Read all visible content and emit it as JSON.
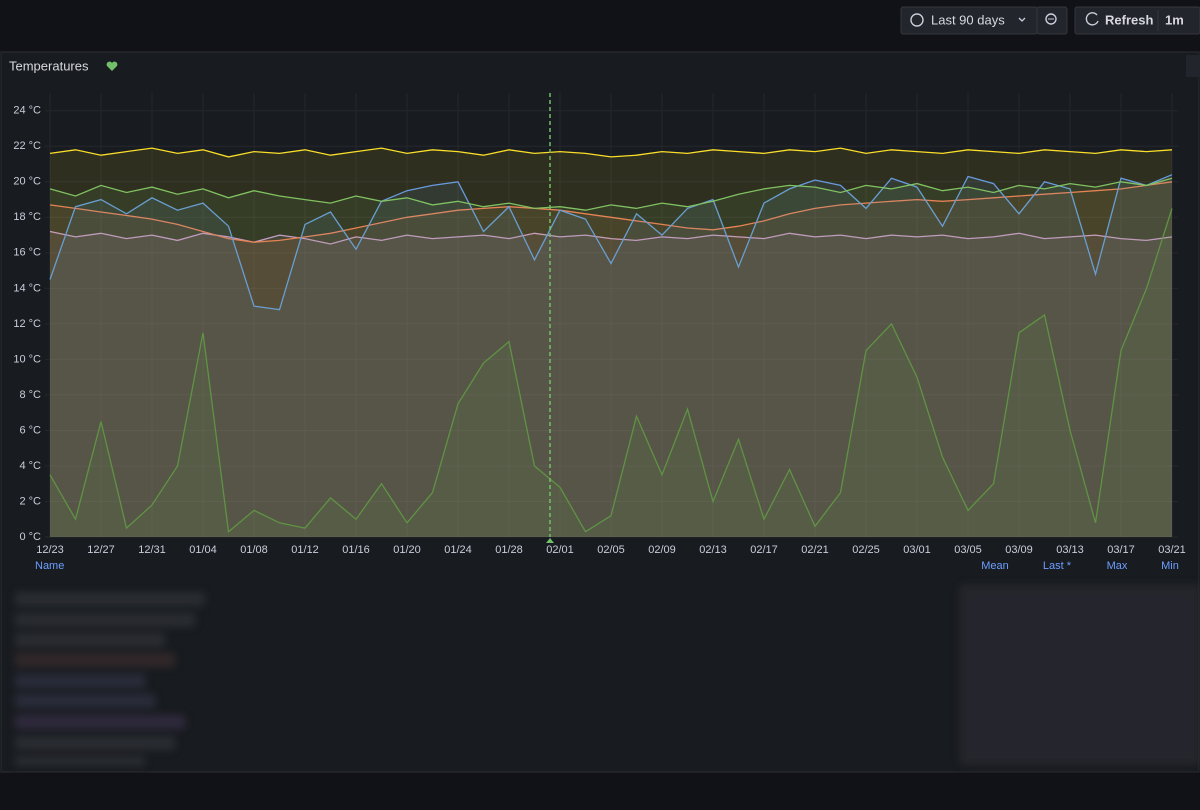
{
  "toolbar": {
    "time_range": "Last 90 days",
    "refresh": "Refresh",
    "interval": "1m"
  },
  "panel": {
    "title": "Temperatures"
  },
  "chart_data": {
    "type": "line",
    "categories": [
      "12/23",
      null,
      "12/27",
      null,
      "12/31",
      null,
      "01/04",
      null,
      "01/08",
      null,
      "01/12",
      null,
      "01/16",
      null,
      "01/20",
      null,
      "01/24",
      null,
      "01/28",
      null,
      "02/01",
      null,
      "02/05",
      null,
      "02/09",
      null,
      "02/13",
      null,
      "02/17",
      null,
      "02/21",
      null,
      "02/25",
      null,
      "03/01",
      null,
      "03/05",
      null,
      "03/09",
      null,
      "03/13",
      null,
      "03/17",
      null,
      "03/21"
    ],
    "ylim": [
      0,
      25
    ],
    "yticks": [
      {
        "value": 0,
        "label": "0 °C"
      },
      {
        "value": 2,
        "label": "2 °C"
      },
      {
        "value": 4,
        "label": "4 °C"
      },
      {
        "value": 6,
        "label": "6 °C"
      },
      {
        "value": 8,
        "label": "8 °C"
      },
      {
        "value": 10,
        "label": "10 °C"
      },
      {
        "value": 12,
        "label": "12 °C"
      },
      {
        "value": 14,
        "label": "14 °C"
      },
      {
        "value": 16,
        "label": "16 °C"
      },
      {
        "value": 18,
        "label": "18 °C"
      },
      {
        "value": 20,
        "label": "20 °C"
      },
      {
        "value": 22,
        "label": "22 °C"
      },
      {
        "value": 24,
        "label": "24 °C"
      }
    ],
    "grid": true,
    "series": [
      {
        "color": "#ca95e5",
        "values": [
          17.2,
          16.9,
          17.1,
          16.8,
          17.0,
          16.7,
          17.1,
          16.9,
          16.6,
          17.0,
          16.8,
          16.5,
          16.9,
          16.7,
          17.0,
          16.8,
          16.9,
          17.0,
          16.8,
          17.1,
          16.9,
          17.0,
          16.8,
          16.7,
          16.9,
          16.8,
          17.0,
          16.9,
          16.8,
          17.1,
          16.9,
          17.0,
          16.8,
          17.0,
          16.9,
          17.0,
          16.8,
          16.9,
          17.1,
          16.8,
          16.9,
          17.0,
          16.8,
          16.7,
          16.9
        ]
      },
      {
        "color": "#37872d",
        "values": [
          3.5,
          1.0,
          6.5,
          0.5,
          1.8,
          4.0,
          11.5,
          0.3,
          1.5,
          0.8,
          0.5,
          2.2,
          1.0,
          3.0,
          0.8,
          2.5,
          7.5,
          9.8,
          11.0,
          4.0,
          2.8,
          0.3,
          1.2,
          6.8,
          3.5,
          7.2,
          2.0,
          5.5,
          1.0,
          3.8,
          0.6,
          2.5,
          10.5,
          12.0,
          9.0,
          4.5,
          1.5,
          3.0,
          11.5,
          12.5,
          6.0,
          0.8,
          10.5,
          14.0,
          18.5
        ]
      },
      {
        "color": "#f2725a",
        "values": [
          18.7,
          18.5,
          18.3,
          18.1,
          17.9,
          17.6,
          17.2,
          16.8,
          16.6,
          16.7,
          16.9,
          17.1,
          17.4,
          17.7,
          18.0,
          18.2,
          18.4,
          18.5,
          18.6,
          18.5,
          18.4,
          18.2,
          18.0,
          17.8,
          17.6,
          17.4,
          17.3,
          17.5,
          17.8,
          18.2,
          18.5,
          18.7,
          18.8,
          18.9,
          19.0,
          18.9,
          19.0,
          19.1,
          19.2,
          19.3,
          19.4,
          19.5,
          19.6,
          19.8,
          20.0
        ]
      },
      {
        "color": "#5794f2",
        "values": [
          14.5,
          18.6,
          19.0,
          18.2,
          19.1,
          18.4,
          18.8,
          17.5,
          13.0,
          12.8,
          17.6,
          18.3,
          16.2,
          18.9,
          19.5,
          19.8,
          20.0,
          17.2,
          18.6,
          15.6,
          18.4,
          17.9,
          15.4,
          18.2,
          17.0,
          18.5,
          19.0,
          15.2,
          18.8,
          19.6,
          20.1,
          19.8,
          18.5,
          20.2,
          19.7,
          17.5,
          20.3,
          19.9,
          18.2,
          20.0,
          19.6,
          14.8,
          20.2,
          19.8,
          20.4
        ]
      },
      {
        "color": "#73bf69",
        "values": [
          19.6,
          19.2,
          19.8,
          19.4,
          19.7,
          19.3,
          19.6,
          19.1,
          19.5,
          19.2,
          19.0,
          18.8,
          19.2,
          18.9,
          19.1,
          18.7,
          18.9,
          18.6,
          18.8,
          18.5,
          18.6,
          18.4,
          18.7,
          18.5,
          18.8,
          18.6,
          18.9,
          19.3,
          19.6,
          19.8,
          19.7,
          19.4,
          19.8,
          19.6,
          19.9,
          19.5,
          19.7,
          19.4,
          19.8,
          19.6,
          19.9,
          19.7,
          20.0,
          19.8,
          20.2
        ]
      },
      {
        "color": "#fade2a",
        "values": [
          21.6,
          21.8,
          21.5,
          21.7,
          21.9,
          21.6,
          21.8,
          21.4,
          21.7,
          21.6,
          21.8,
          21.5,
          21.7,
          21.9,
          21.6,
          21.8,
          21.7,
          21.5,
          21.8,
          21.6,
          21.7,
          21.6,
          21.4,
          21.5,
          21.7,
          21.6,
          21.8,
          21.7,
          21.6,
          21.8,
          21.7,
          21.9,
          21.6,
          21.8,
          21.7,
          21.6,
          21.8,
          21.7,
          21.6,
          21.8,
          21.7,
          21.6,
          21.8,
          21.7,
          21.8
        ]
      }
    ]
  },
  "legend": {
    "columns": [
      "Name",
      "Mean",
      "Last *",
      "Max",
      "Min"
    ]
  }
}
